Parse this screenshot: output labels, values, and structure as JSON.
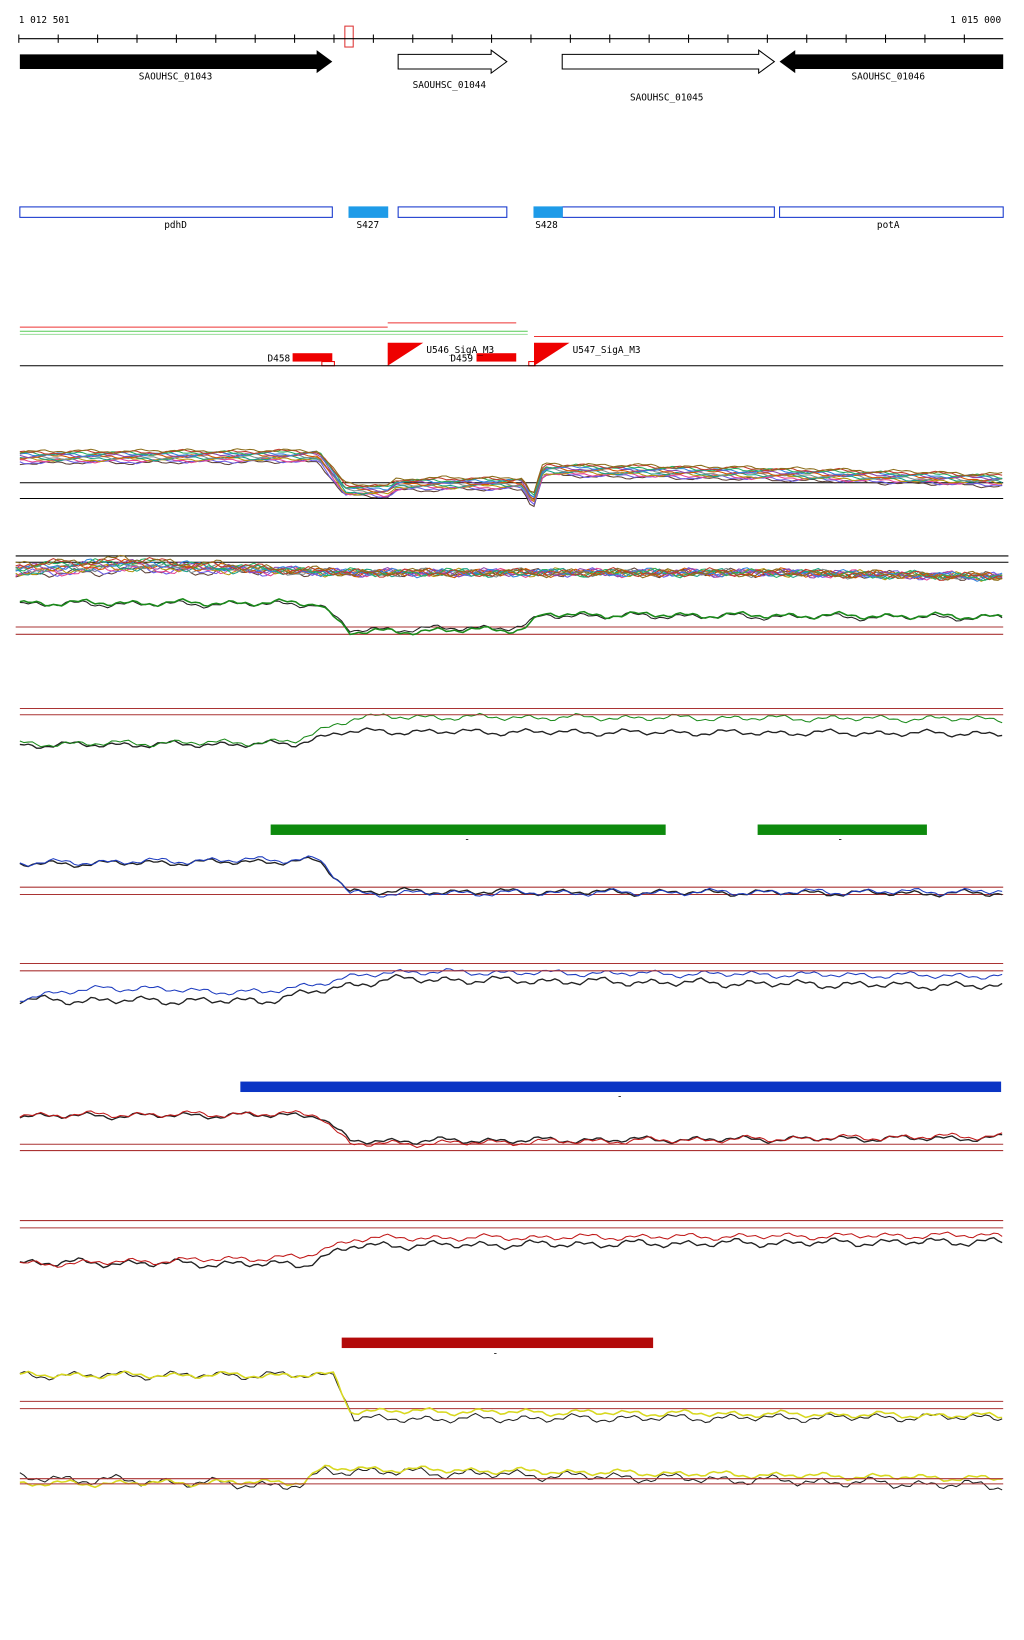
{
  "ruler": {
    "start": "1 012 501",
    "end": "1 015 000"
  },
  "genes": [
    "SAOUHSC_01043",
    "SAOUHSC_01044",
    "SAOUHSC_01045",
    "SAOUHSC_01046"
  ],
  "features": [
    "pdhD",
    "S427",
    "S428",
    "potA"
  ],
  "tss": [
    "D458",
    "U546_SigA_M3",
    "D459",
    "U547_SigA_M3"
  ],
  "segment_labels": [
    "-",
    "-",
    "-",
    "-",
    "-"
  ]
}
